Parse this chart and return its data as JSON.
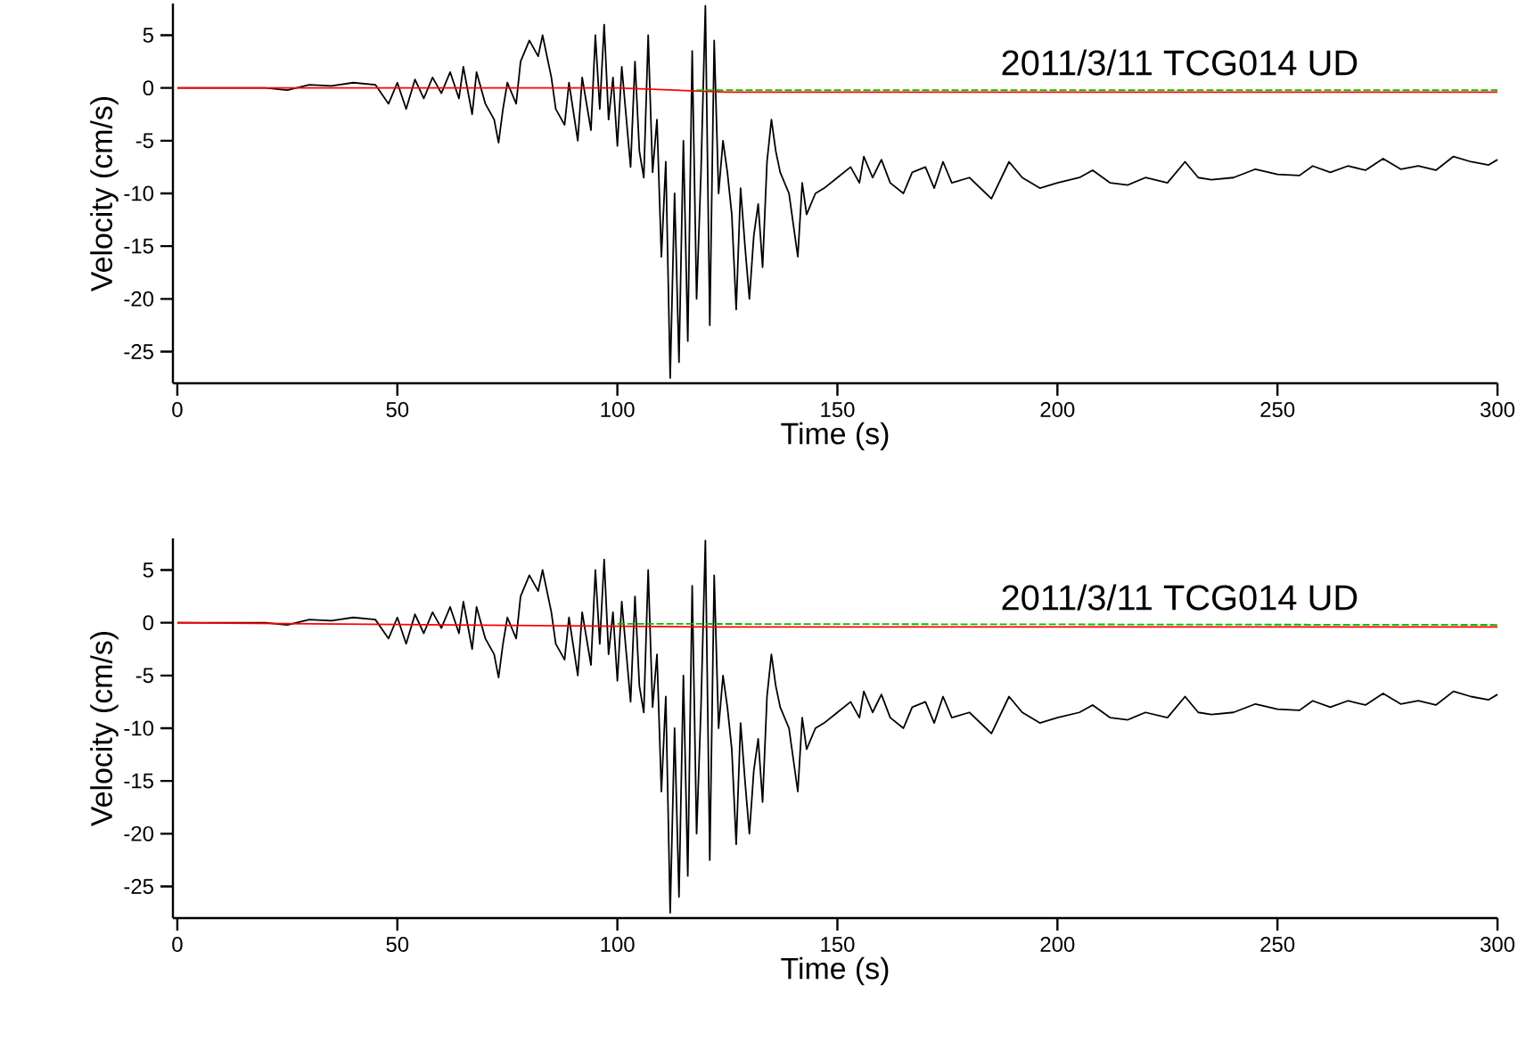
{
  "chart_data": [
    {
      "type": "line",
      "xlabel": "Time (s)",
      "ylabel": "Velocity (cm/s)",
      "annotations": [
        "2011/3/11 TCG014 UD"
      ],
      "xlim": [
        -1,
        300
      ],
      "ylim": [
        -28,
        8
      ],
      "xticks": [
        0,
        50,
        100,
        150,
        200,
        250,
        300
      ],
      "yticks": [
        -25,
        -20,
        -15,
        -10,
        -5,
        0,
        5
      ],
      "series": [
        {
          "color": "#000000",
          "x": [
            0,
            10,
            20,
            25,
            30,
            35,
            40,
            45,
            48,
            50,
            52,
            54,
            56,
            58,
            60,
            62,
            64,
            65,
            67,
            68,
            70,
            72,
            73,
            74,
            75,
            77,
            78,
            80,
            82,
            83,
            85,
            86,
            88,
            89,
            91,
            92,
            94,
            95,
            96,
            97,
            98,
            99,
            100,
            101,
            103,
            104,
            105,
            106,
            107,
            108,
            109,
            110,
            111,
            112,
            113,
            114,
            115,
            116,
            117,
            118,
            119,
            120,
            121,
            122,
            123,
            124,
            125,
            126,
            127,
            128,
            129,
            130,
            131,
            132,
            133,
            134,
            135,
            136,
            137,
            139,
            140,
            141,
            142,
            143,
            145,
            147,
            150,
            153,
            155,
            156,
            158,
            160,
            162,
            165,
            167,
            170,
            172,
            174,
            176,
            180,
            185,
            189,
            192,
            196,
            200,
            205,
            208,
            212,
            216,
            220,
            225,
            229,
            232,
            235,
            240,
            245,
            250,
            255,
            258,
            262,
            266,
            270,
            274,
            278,
            282,
            286,
            290,
            294,
            298,
            300
          ],
          "values": [
            0,
            0,
            0,
            -0.2,
            0.3,
            0.2,
            0.5,
            0.3,
            -1.5,
            0.5,
            -2,
            0.8,
            -1,
            1,
            -0.5,
            1.5,
            -1,
            2,
            -2.5,
            1.5,
            -1.5,
            -3,
            -5.2,
            -2,
            0.5,
            -1.5,
            2.5,
            4.5,
            3,
            5,
            1,
            -2,
            -3.5,
            0.5,
            -5,
            1,
            -4,
            5,
            -2,
            6,
            -3,
            1,
            -5.5,
            2,
            -7.5,
            2.5,
            -6,
            -8.5,
            5,
            -8,
            -3,
            -16,
            -7,
            -27.5,
            -10,
            -26,
            -5,
            -24,
            3.5,
            -20,
            -8,
            7.8,
            -22.5,
            4.5,
            -10,
            -5,
            -8,
            -12,
            -21,
            -9.5,
            -15,
            -20,
            -14,
            -11,
            -17,
            -7,
            -3,
            -6,
            -8,
            -10,
            -13,
            -16,
            -9,
            -12,
            -10,
            -9.5,
            -8.5,
            -7.5,
            -9,
            -6.5,
            -8.5,
            -6.8,
            -9,
            -10,
            -8,
            -7.5,
            -9.5,
            -7,
            -9,
            -8.5,
            -10.5,
            -7,
            -8.5,
            -9.5,
            -9,
            -8.5,
            -7.8,
            -9,
            -9.2,
            -8.5,
            -9,
            -7,
            -8.5,
            -8.7,
            -8.5,
            -7.7,
            -8.2,
            -8.3,
            -7.4,
            -8,
            -7.4,
            -7.8,
            -6.7,
            -7.7,
            -7.4,
            -7.8,
            -6.5,
            -7,
            -7.3,
            -6.8
          ]
        },
        {
          "color": "#ff0000",
          "x": [
            0,
            100,
            125,
            300
          ],
          "values": [
            0,
            0,
            -0.4,
            -0.4
          ]
        },
        {
          "color": "#00c000",
          "line_style": "dashed",
          "x": [
            118,
            300
          ],
          "values": [
            -0.2,
            -0.2
          ]
        }
      ]
    },
    {
      "type": "line",
      "xlabel": "Time (s)",
      "ylabel": "Velocity (cm/s)",
      "annotations": [
        "2011/3/11 TCG014 UD"
      ],
      "xlim": [
        -1,
        300
      ],
      "ylim": [
        -28,
        8
      ],
      "xticks": [
        0,
        50,
        100,
        150,
        200,
        250,
        300
      ],
      "yticks": [
        -25,
        -20,
        -15,
        -10,
        -5,
        0,
        5
      ],
      "series": [
        {
          "color": "#000000",
          "x": [
            0,
            10,
            20,
            25,
            30,
            35,
            40,
            45,
            48,
            50,
            52,
            54,
            56,
            58,
            60,
            62,
            64,
            65,
            67,
            68,
            70,
            72,
            73,
            74,
            75,
            77,
            78,
            80,
            82,
            83,
            85,
            86,
            88,
            89,
            91,
            92,
            94,
            95,
            96,
            97,
            98,
            99,
            100,
            101,
            103,
            104,
            105,
            106,
            107,
            108,
            109,
            110,
            111,
            112,
            113,
            114,
            115,
            116,
            117,
            118,
            119,
            120,
            121,
            122,
            123,
            124,
            125,
            126,
            127,
            128,
            129,
            130,
            131,
            132,
            133,
            134,
            135,
            136,
            137,
            139,
            140,
            141,
            142,
            143,
            145,
            147,
            150,
            153,
            155,
            156,
            158,
            160,
            162,
            165,
            167,
            170,
            172,
            174,
            176,
            180,
            185,
            189,
            192,
            196,
            200,
            205,
            208,
            212,
            216,
            220,
            225,
            229,
            232,
            235,
            240,
            245,
            250,
            255,
            258,
            262,
            266,
            270,
            274,
            278,
            282,
            286,
            290,
            294,
            298,
            300
          ],
          "values": [
            0,
            0,
            0,
            -0.2,
            0.3,
            0.2,
            0.5,
            0.3,
            -1.5,
            0.5,
            -2,
            0.8,
            -1,
            1,
            -0.5,
            1.5,
            -1,
            2,
            -2.5,
            1.5,
            -1.5,
            -3,
            -5.2,
            -2,
            0.5,
            -1.5,
            2.5,
            4.5,
            3,
            5,
            1,
            -2,
            -3.5,
            0.5,
            -5,
            1,
            -4,
            5,
            -2,
            6,
            -3,
            1,
            -5.5,
            2,
            -7.5,
            2.5,
            -6,
            -8.5,
            5,
            -8,
            -3,
            -16,
            -7,
            -27.5,
            -10,
            -26,
            -5,
            -24,
            3.5,
            -20,
            -8,
            7.8,
            -22.5,
            4.5,
            -10,
            -5,
            -8,
            -12,
            -21,
            -9.5,
            -15,
            -20,
            -14,
            -11,
            -17,
            -7,
            -3,
            -6,
            -8,
            -10,
            -13,
            -16,
            -9,
            -12,
            -10,
            -9.5,
            -8.5,
            -7.5,
            -9,
            -6.5,
            -8.5,
            -6.8,
            -9,
            -10,
            -8,
            -7.5,
            -9.5,
            -7,
            -9,
            -8.5,
            -10.5,
            -7,
            -8.5,
            -9.5,
            -9,
            -8.5,
            -7.8,
            -9,
            -9.2,
            -8.5,
            -9,
            -7,
            -8.5,
            -8.7,
            -8.5,
            -7.7,
            -8.2,
            -8.3,
            -7.4,
            -8,
            -7.4,
            -7.8,
            -6.7,
            -7.7,
            -7.4,
            -7.8,
            -6.5,
            -7,
            -7.3,
            -6.8
          ]
        },
        {
          "color": "#ff0000",
          "x": [
            0,
            120,
            300
          ],
          "values": [
            0,
            -0.4,
            -0.4
          ]
        },
        {
          "color": "#00c000",
          "line_style": "dashed",
          "x": [
            100,
            300
          ],
          "values": [
            -0.1,
            -0.2
          ]
        }
      ]
    }
  ]
}
